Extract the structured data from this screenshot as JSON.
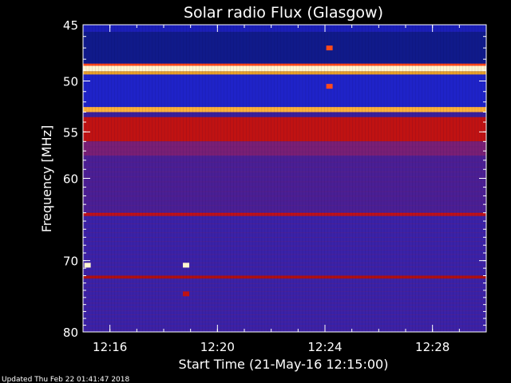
{
  "chart_data": {
    "type": "heatmap",
    "title": "Solar radio Flux (Glasgow)",
    "xlabel": "Start Time (21-May-16 12:15:00)",
    "ylabel": "Frequency [MHz]",
    "footer": "Updated Thu Feb 22 01:41:47 2018",
    "x_ticks": [
      "12:16",
      "12:20",
      "12:24",
      "12:28"
    ],
    "y_ticks": [
      "45",
      "50",
      "55",
      "60",
      "70",
      "80"
    ],
    "y_scale": "log",
    "x_range": [
      "12:15:00",
      "12:30:00"
    ],
    "y_range_mhz": [
      45,
      80
    ],
    "colormap": [
      "#0a0a55",
      "#1b1fb8",
      "#3a1f9a",
      "#6a1f85",
      "#8f1f55",
      "#b81414",
      "#e85a10",
      "#ffb23a",
      "#fff6d0"
    ],
    "bands": [
      {
        "f_low": 45.0,
        "f_high": 45.6,
        "color": "#1b1fb8"
      },
      {
        "f_low": 45.6,
        "f_high": 48.4,
        "color": "#101a8a"
      },
      {
        "f_low": 48.4,
        "f_high": 48.6,
        "color": "#ff4a1a"
      },
      {
        "f_low": 48.6,
        "f_high": 49.1,
        "color": "#fff6d0"
      },
      {
        "f_low": 49.1,
        "f_high": 49.4,
        "color": "#e8a02a"
      },
      {
        "f_low": 49.4,
        "f_high": 52.5,
        "color": "#1f23c8"
      },
      {
        "f_low": 52.5,
        "f_high": 53.0,
        "color": "#ffb23a"
      },
      {
        "f_low": 53.0,
        "f_high": 53.5,
        "color": "#3a1f9a"
      },
      {
        "f_low": 53.5,
        "f_high": 56.0,
        "color": "#c01212"
      },
      {
        "f_low": 56.0,
        "f_high": 57.5,
        "color": "#7a1f75"
      },
      {
        "f_low": 57.5,
        "f_high": 64.0,
        "color": "#4a1f95"
      },
      {
        "f_low": 64.0,
        "f_high": 64.4,
        "color": "#c81010"
      },
      {
        "f_low": 64.4,
        "f_high": 72.0,
        "color": "#3a22a8"
      },
      {
        "f_low": 72.0,
        "f_high": 72.4,
        "color": "#b01010"
      },
      {
        "f_low": 72.4,
        "f_high": 80.0,
        "color": "#3a22a8"
      }
    ],
    "bursts": [
      {
        "time": "12:15:10",
        "f_mhz": 70.6,
        "color": "#fff6d0"
      },
      {
        "time": "12:18:50",
        "f_mhz": 70.6,
        "color": "#fff6d0"
      },
      {
        "time": "12:18:50",
        "f_mhz": 74.5,
        "color": "#c01212"
      },
      {
        "time": "12:24:10",
        "f_mhz": 47.0,
        "color": "#ff4a1a"
      },
      {
        "time": "12:24:10",
        "f_mhz": 50.5,
        "color": "#ff4a1a"
      }
    ],
    "grid": false,
    "legend": "none"
  }
}
